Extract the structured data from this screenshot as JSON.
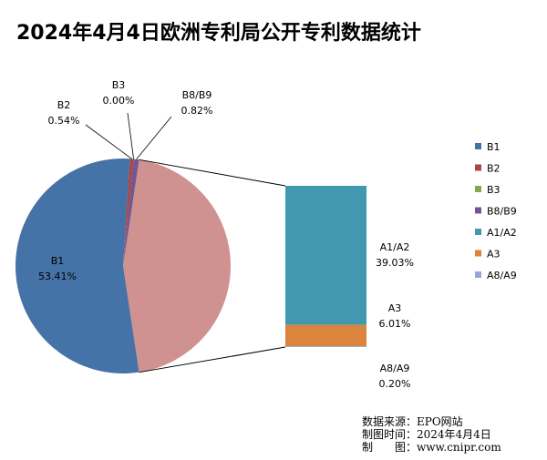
{
  "chart_data": {
    "type": "bar-of-pie",
    "title": "2024年4月4日欧洲专利局公开专利数据统计",
    "pie": [
      {
        "name": "B1",
        "value": 53.41,
        "label": "53.41%",
        "color": "#4572a7"
      },
      {
        "name": "B2",
        "value": 0.54,
        "label": "0.54%",
        "color": "#aa4643"
      },
      {
        "name": "B3",
        "value": 0.0,
        "label": "0.00%",
        "color": "#89a54e"
      },
      {
        "name": "B8/B9",
        "value": 0.82,
        "label": "0.82%",
        "color": "#71588f"
      },
      {
        "name": "A (other)",
        "value": 45.24,
        "color": "#d09191"
      }
    ],
    "bar": [
      {
        "name": "A1/A2",
        "value": 39.03,
        "label": "39.03%",
        "color": "#4198af"
      },
      {
        "name": "A3",
        "value": 6.01,
        "label": "6.01%",
        "color": "#db843d"
      },
      {
        "name": "A8/A9",
        "value": 0.2,
        "label": "0.20%",
        "color": "#93a9cf"
      }
    ],
    "legend": [
      "B1",
      "B2",
      "B3",
      "B8/B9",
      "A1/A2",
      "A3",
      "A8/A9"
    ],
    "legend_position": "right"
  },
  "source": {
    "line1": "数据来源：EPO网站",
    "line2": "制图时间：2024年4月4日",
    "line3": "制　　图：www.cnipr.com"
  }
}
